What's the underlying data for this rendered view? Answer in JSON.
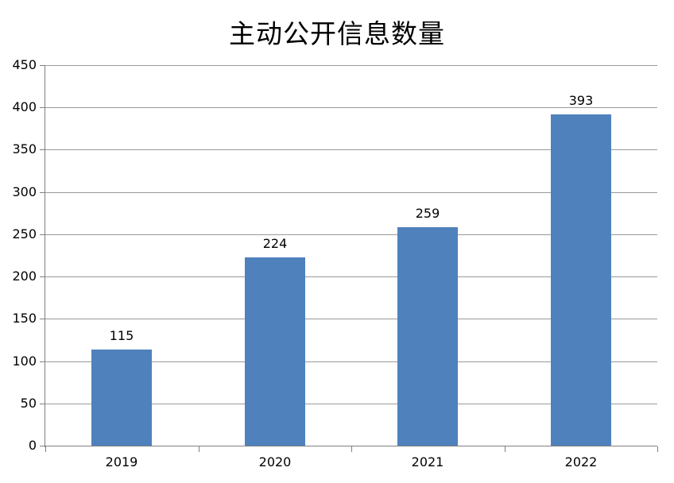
{
  "chart_data": {
    "type": "bar",
    "title": "主动公开信息数量",
    "categories": [
      "2019",
      "2020",
      "2021",
      "2022"
    ],
    "values": [
      115,
      224,
      259,
      393
    ],
    "xlabel": "",
    "ylabel": "",
    "ylim": [
      0,
      450
    ],
    "ytick_step": 50,
    "ytick_labels": [
      "0",
      "50",
      "100",
      "150",
      "200",
      "250",
      "300",
      "350",
      "400",
      "450"
    ],
    "grid": true,
    "legend": "none",
    "colors": {
      "bar_fill": "#4f81bd",
      "gridline": "#9a9a9a",
      "axis": "#808080",
      "text": "#000000",
      "background": "#ffffff"
    }
  }
}
